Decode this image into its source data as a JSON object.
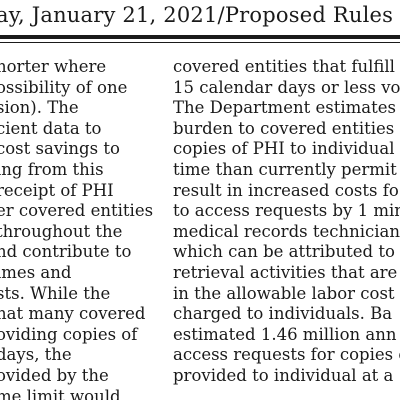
{
  "header": {
    "text": "ay, January 21, 2021/Proposed Rules"
  },
  "left_column": [
    "horter where",
    "ossibility of one",
    "sion). The",
    "cient data to",
    "cost savings to",
    "ing from this",
    " receipt of PHI",
    "er covered entities",
    " throughout the",
    "nd contribute to",
    "imes and",
    "sts. While the",
    "hat many covered",
    "oviding copies of",
    "days, the",
    "ovided by the",
    "me limit would"
  ],
  "right_column": [
    "covered entities that fulfill",
    "15 calendar days or less vo",
    "The Department estimates",
    "burden to covered entities",
    "copies of PHI to individual",
    "time than currently permit",
    "result in increased costs fo",
    "to access requests by 1 min",
    "medical records technician",
    "which can be attributed to",
    "retrieval activities that are",
    "in the allowable labor cost",
    "charged to individuals. Ba",
    "estimated 1.46 million ann",
    "access requests for copies o",
    "provided to individual at a"
  ]
}
